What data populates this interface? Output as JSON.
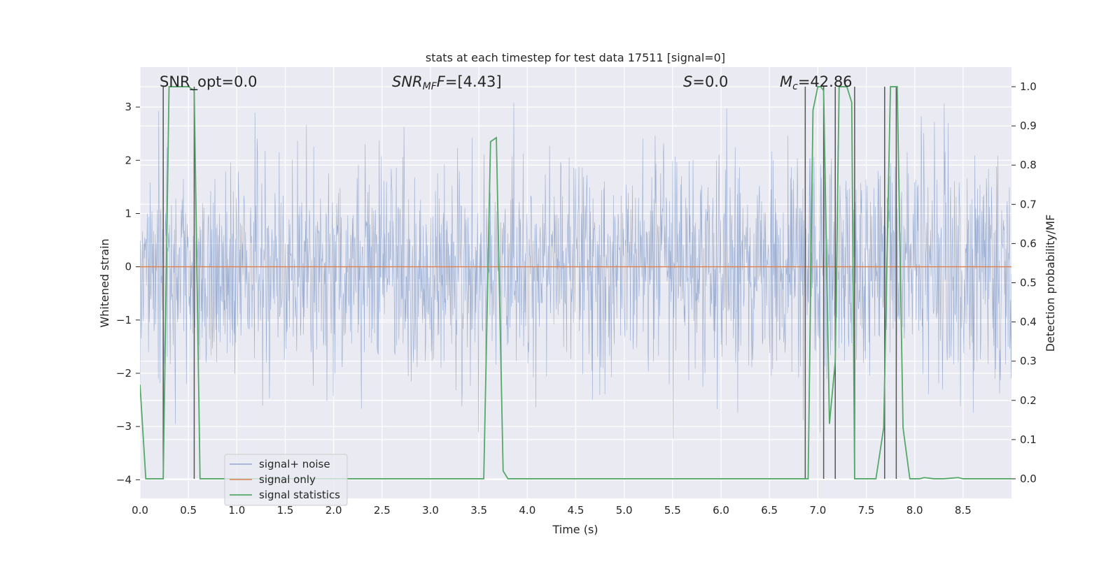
{
  "chart_data": {
    "type": "line",
    "title": "stats at each timestep for test data 17511 [signal=0]",
    "xlabel": "Time (s)",
    "ylabel_left": "Whitened strain",
    "ylabel_right": "Detection probability/MF",
    "xlim": [
      0.0,
      9.0
    ],
    "ylim_left": [
      -4.35,
      3.75
    ],
    "ylim_right": [
      -0.05,
      1.05
    ],
    "xticks": [
      0.0,
      0.5,
      1.0,
      1.5,
      2.0,
      2.5,
      3.0,
      3.5,
      4.0,
      4.5,
      5.0,
      5.5,
      6.0,
      6.5,
      7.0,
      7.5,
      8.0,
      8.5
    ],
    "xtick_labels": [
      "0.0",
      "0.5",
      "1.0",
      "1.5",
      "2.0",
      "2.5",
      "3.0",
      "3.5",
      "4.0",
      "4.5",
      "5.0",
      "5.5",
      "6.0",
      "6.5",
      "7.0",
      "7.5",
      "8.0",
      "8.5"
    ],
    "yticks_left": [
      -4,
      -3,
      -2,
      -1,
      0,
      1,
      2,
      3
    ],
    "ytick_labels_left": [
      "−4",
      "−3",
      "−2",
      "−1",
      "0",
      "1",
      "2",
      "3"
    ],
    "yticks_right": [
      0.0,
      0.1,
      0.2,
      0.3,
      0.4,
      0.5,
      0.6,
      0.7,
      0.8,
      0.9,
      1.0
    ],
    "ytick_labels_right": [
      "0.0",
      "0.1",
      "0.2",
      "0.3",
      "0.4",
      "0.5",
      "0.6",
      "0.7",
      "0.8",
      "0.9",
      "1.0"
    ],
    "grid": true,
    "legend_position": "lower-left",
    "series": [
      {
        "name": "signal+ noise",
        "axis": "left",
        "color": "#4c72b0",
        "kind": "whitened noise, approx. standard normal",
        "spread_std": 1.0,
        "n_samples": 2048,
        "x_range": [
          0.0,
          9.0
        ]
      },
      {
        "name": "signal only",
        "axis": "left",
        "color": "#dd8452",
        "x": [
          0.0,
          9.0
        ],
        "y": [
          0.0,
          0.0
        ]
      },
      {
        "name": "signal statistics",
        "axis": "right",
        "color": "#55a868",
        "x": [
          0.0,
          0.06,
          0.12,
          0.24,
          0.3,
          0.35,
          0.5,
          0.56,
          0.62,
          3.55,
          3.62,
          3.68,
          3.75,
          3.8,
          6.85,
          6.9,
          6.95,
          7.0,
          7.03,
          7.06,
          7.12,
          7.18,
          7.22,
          7.26,
          7.3,
          7.35,
          7.38,
          7.44,
          7.6,
          7.68,
          7.75,
          7.82,
          7.88,
          7.95,
          8.05,
          8.1,
          8.2,
          8.3,
          8.45,
          8.5,
          8.6,
          9.0
        ],
        "y": [
          0.24,
          0.0,
          0.0,
          0.0,
          1.0,
          1.0,
          1.0,
          0.99,
          0.0,
          0.0,
          0.86,
          0.87,
          0.02,
          0.0,
          0.0,
          0.0,
          0.94,
          1.0,
          1.0,
          0.99,
          0.14,
          0.3,
          1.0,
          1.0,
          1.0,
          0.96,
          0.0,
          0.0,
          0.0,
          0.13,
          1.0,
          1.0,
          0.13,
          0.0,
          0.0,
          0.003,
          0.0,
          0.0,
          0.003,
          0.0,
          0.0,
          0.0
        ]
      }
    ],
    "vertical_lines": [
      0.24,
      0.56,
      6.87,
      7.06,
      7.18,
      7.38,
      7.69,
      7.81
    ],
    "vertical_line_color": "#555555",
    "annotations": {
      "snr_opt": "SNR_opt=0.0",
      "snr_mf_name": "SNR",
      "snr_mf_sub": "MF",
      "snr_mf_value": "=[4.43]",
      "s_name": "S",
      "s_value": "=0.0",
      "mc_name": "M",
      "mc_sub": "c",
      "mc_value": "=42.86"
    }
  }
}
